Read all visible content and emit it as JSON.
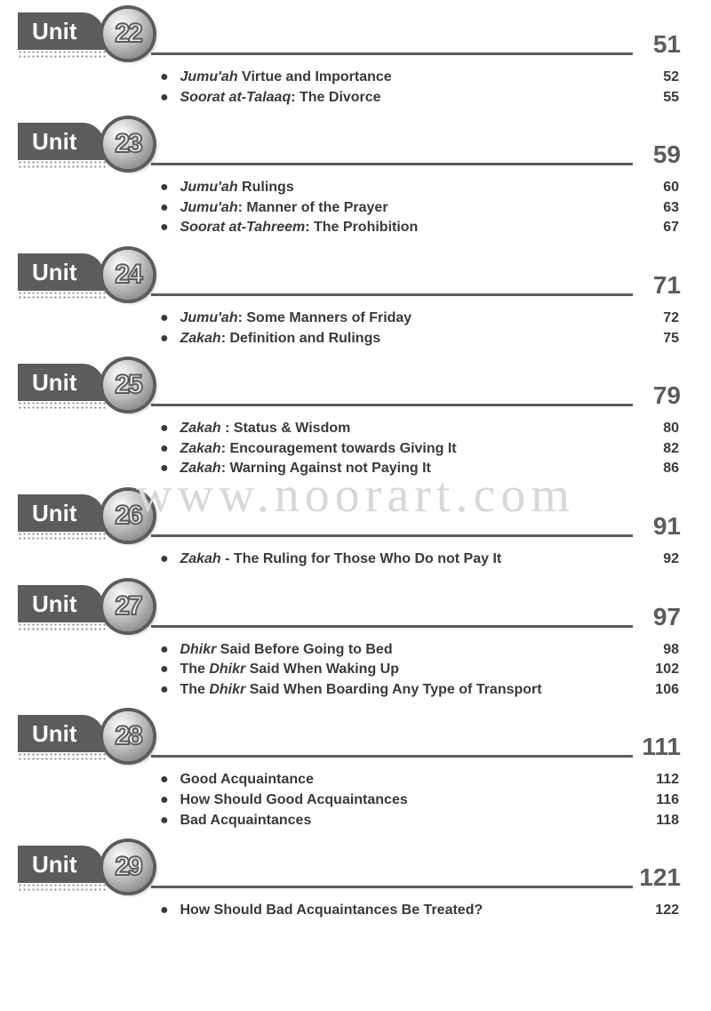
{
  "watermark": "www.noorart.com",
  "unit_label": "Unit",
  "units": [
    {
      "number": "22",
      "page": "51",
      "topics": [
        {
          "label_html": "<span class='italic'>Jumu'ah</span> Virtue and Importance",
          "page": "52"
        },
        {
          "label_html": "<span class='italic'>Soorat at-Talaaq</span>: The Divorce",
          "page": "55"
        }
      ]
    },
    {
      "number": "23",
      "page": "59",
      "topics": [
        {
          "label_html": "<span class='italic'>Jumu'ah</span> Rulings",
          "page": "60"
        },
        {
          "label_html": "<span class='italic'>Jumu'ah</span>: Manner of the Prayer",
          "page": "63"
        },
        {
          "label_html": "<span class='italic'>Soorat at-Tahreem</span>: The Prohibition",
          "page": "67"
        }
      ]
    },
    {
      "number": "24",
      "page": "71",
      "topics": [
        {
          "label_html": "<span class='italic'>Jumu'ah</span>: Some Manners of Friday",
          "page": "72"
        },
        {
          "label_html": "<span class='italic'>Zakah</span>: Definition and Rulings",
          "page": "75"
        }
      ]
    },
    {
      "number": "25",
      "page": "79",
      "topics": [
        {
          "label_html": "<span class='italic'>Zakah</span> : Status & Wisdom",
          "page": "80"
        },
        {
          "label_html": "<span class='italic'>Zakah</span>: Encouragement towards Giving It",
          "page": "82"
        },
        {
          "label_html": "<span class='italic'>Zakah</span>: Warning Against not Paying It",
          "page": "86"
        }
      ]
    },
    {
      "number": "26",
      "page": "91",
      "topics": [
        {
          "label_html": "<span class='italic'>Zakah</span> - The Ruling for Those Who Do not Pay It",
          "page": "92"
        }
      ]
    },
    {
      "number": "27",
      "page": "97",
      "topics": [
        {
          "label_html": "<span class='italic'>Dhikr</span> Said Before Going to Bed",
          "page": "98"
        },
        {
          "label_html": "The <span class='italic'>Dhikr</span> Said When Waking Up",
          "page": "102"
        },
        {
          "label_html": "The <span class='italic'>Dhikr</span> Said When Boarding Any Type of Transport",
          "page": "106"
        }
      ]
    },
    {
      "number": "28",
      "page": "111",
      "topics": [
        {
          "label_html": "Good Acquaintance",
          "page": "112"
        },
        {
          "label_html": "How Should Good Acquaintances",
          "page": "116"
        },
        {
          "label_html": "Bad Acquaintances",
          "page": "118"
        }
      ]
    },
    {
      "number": "29",
      "page": "121",
      "topics": [
        {
          "label_html": "How Should Bad Acquaintances Be Treated?",
          "page": "122"
        }
      ]
    }
  ],
  "styles": {
    "tab_bg": "#5a5c5e",
    "text_color": "#3a3a3a",
    "page_num_color": "#5a5c5e",
    "watermark_color": "#d8d8d8",
    "bg": "#ffffff",
    "unit_fontsize": 26,
    "circle_fontsize": 30,
    "page_fontsize": 28,
    "topic_fontsize": 16
  }
}
